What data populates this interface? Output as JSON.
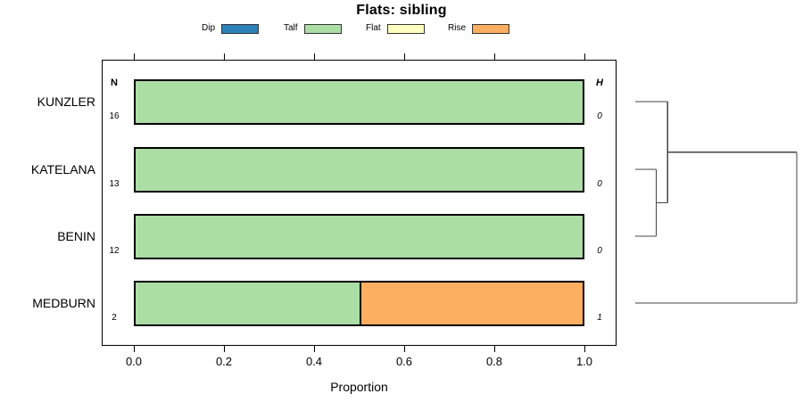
{
  "title": "Flats: sibling",
  "legend": {
    "items": [
      {
        "label": "Dip",
        "color": "#2B83BA"
      },
      {
        "label": "Talf",
        "color": "#ABDDA4"
      },
      {
        "label": "Flat",
        "color": "#FFFFBF"
      },
      {
        "label": "Rise",
        "color": "#FDAE61"
      }
    ]
  },
  "chart_data": {
    "type": "bar",
    "orientation": "horizontal-stacked",
    "title": "Flats: sibling",
    "xlabel": "Proportion",
    "xlim": [
      0,
      1
    ],
    "x_ticks": [
      "0.0",
      "0.2",
      "0.4",
      "0.6",
      "0.8",
      "1.0"
    ],
    "x_tick_values": [
      0,
      0.2,
      0.4,
      0.6,
      0.8,
      1.0
    ],
    "grid": false,
    "legend_position": "top",
    "categories": [
      "KUNZLER",
      "KATELANA",
      "BENIN",
      "MEDBURN"
    ],
    "series": [
      {
        "name": "Dip",
        "color": "#2B83BA",
        "values": [
          0,
          0,
          0,
          0
        ]
      },
      {
        "name": "Talf",
        "color": "#ABDDA4",
        "values": [
          1.0,
          1.0,
          1.0,
          0.5
        ]
      },
      {
        "name": "Flat",
        "color": "#FFFFBF",
        "values": [
          0,
          0,
          0,
          0
        ]
      },
      {
        "name": "Rise",
        "color": "#FDAE61",
        "values": [
          0,
          0,
          0,
          0.5
        ]
      }
    ],
    "n_column": {
      "header": "N",
      "values": [
        "16",
        "13",
        "12",
        "2"
      ]
    },
    "h_column": {
      "header": "H",
      "values": [
        "0",
        "0",
        "0",
        "1"
      ]
    },
    "dendrogram": {
      "leaves": [
        "KUNZLER",
        "KATELANA",
        "BENIN",
        "MEDBURN"
      ],
      "merges": [
        {
          "a": "KATELANA",
          "b": "BENIN",
          "height": 0.13
        },
        {
          "a": "KUNZLER",
          "b": "merge0",
          "height": 0.2
        },
        {
          "a": "merge1",
          "b": "MEDBURN",
          "height": 1.0
        }
      ]
    }
  }
}
